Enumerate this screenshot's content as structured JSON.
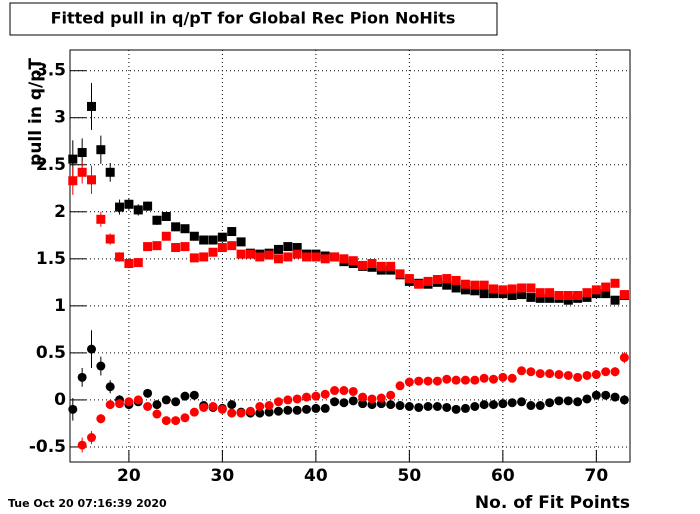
{
  "chart_data": {
    "type": "errorbar",
    "title": "Fitted pull in q/pT for Global Rec Pion NoHits",
    "y_label": "pull in q/pT",
    "x_label": "No. of Fit Points",
    "timestamp": "Tue Oct 20 07:16:39 2020",
    "x": [
      14,
      15,
      16,
      17,
      18,
      19,
      20,
      21,
      22,
      23,
      24,
      25,
      26,
      27,
      28,
      29,
      30,
      31,
      32,
      33,
      34,
      35,
      36,
      37,
      38,
      39,
      40,
      41,
      42,
      43,
      44,
      45,
      46,
      47,
      48,
      49,
      50,
      51,
      52,
      53,
      54,
      55,
      56,
      57,
      58,
      59,
      60,
      61,
      62,
      63,
      64,
      65,
      66,
      67,
      68,
      69,
      70,
      71,
      72,
      73
    ],
    "xlim": [
      13.7,
      73.6
    ],
    "ylim": [
      -0.66,
      3.72
    ],
    "xticks": [
      20,
      30,
      40,
      50,
      60,
      70
    ],
    "yticks": [
      -0.5,
      0,
      0.5,
      1,
      1.5,
      2,
      2.5,
      3,
      3.5
    ],
    "grid": true,
    "series": [
      {
        "color": "#000000",
        "marker": "square",
        "values": [
          2.56,
          2.63,
          3.12,
          2.66,
          2.42,
          2.05,
          2.08,
          2.02,
          2.06,
          1.91,
          1.95,
          1.84,
          1.82,
          1.74,
          1.7,
          1.7,
          1.73,
          1.79,
          1.68,
          1.56,
          1.55,
          1.56,
          1.6,
          1.63,
          1.62,
          1.55,
          1.55,
          1.53,
          1.52,
          1.47,
          1.45,
          1.42,
          1.41,
          1.38,
          1.38,
          1.33,
          1.26,
          1.24,
          1.23,
          1.25,
          1.22,
          1.19,
          1.17,
          1.16,
          1.13,
          1.13,
          1.13,
          1.11,
          1.12,
          1.09,
          1.08,
          1.08,
          1.08,
          1.06,
          1.08,
          1.09,
          1.13,
          1.13,
          1.06,
          1.11
        ],
        "errors": [
          0.2,
          0.15,
          0.25,
          0.15,
          0.1,
          0.08,
          0.06,
          0.06,
          0.05,
          0.05,
          0.04,
          0.04,
          0.04,
          0.04,
          0.03,
          0.03,
          0.03,
          0.03,
          0.03,
          0.03,
          0.03,
          0.03,
          0.03,
          0.03,
          0.03,
          0.03,
          0.03,
          0.03,
          0.03,
          0.03,
          0.03,
          0.03,
          0.03,
          0.03,
          0.03,
          0.03,
          0.03,
          0.03,
          0.03,
          0.03,
          0.03,
          0.03,
          0.03,
          0.03,
          0.03,
          0.03,
          0.03,
          0.03,
          0.03,
          0.03,
          0.03,
          0.03,
          0.03,
          0.03,
          0.03,
          0.03,
          0.03,
          0.03,
          0.03,
          0.04
        ]
      },
      {
        "color": "#ff0000",
        "marker": "square",
        "values": [
          2.33,
          2.42,
          2.34,
          1.92,
          1.71,
          1.52,
          1.45,
          1.46,
          1.63,
          1.64,
          1.74,
          1.62,
          1.63,
          1.51,
          1.52,
          1.57,
          1.62,
          1.64,
          1.55,
          1.55,
          1.52,
          1.54,
          1.5,
          1.52,
          1.55,
          1.52,
          1.52,
          1.5,
          1.52,
          1.5,
          1.48,
          1.43,
          1.45,
          1.42,
          1.42,
          1.34,
          1.29,
          1.23,
          1.26,
          1.28,
          1.29,
          1.27,
          1.23,
          1.22,
          1.22,
          1.18,
          1.17,
          1.18,
          1.19,
          1.19,
          1.14,
          1.14,
          1.11,
          1.11,
          1.11,
          1.14,
          1.17,
          1.2,
          1.24,
          1.12
        ],
        "errors": [
          0.15,
          0.12,
          0.15,
          0.08,
          0.06,
          0.05,
          0.05,
          0.04,
          0.04,
          0.04,
          0.03,
          0.03,
          0.03,
          0.03,
          0.03,
          0.03,
          0.03,
          0.03,
          0.03,
          0.03,
          0.03,
          0.03,
          0.03,
          0.03,
          0.03,
          0.03,
          0.03,
          0.03,
          0.03,
          0.03,
          0.03,
          0.03,
          0.03,
          0.03,
          0.03,
          0.03,
          0.03,
          0.03,
          0.03,
          0.03,
          0.03,
          0.03,
          0.03,
          0.03,
          0.03,
          0.03,
          0.03,
          0.03,
          0.03,
          0.03,
          0.03,
          0.03,
          0.03,
          0.03,
          0.03,
          0.03,
          0.03,
          0.03,
          0.04,
          0.04
        ]
      },
      {
        "color": "#000000",
        "marker": "circle",
        "values": [
          -0.1,
          0.24,
          0.54,
          0.36,
          0.14,
          0.0,
          -0.05,
          -0.02,
          0.07,
          -0.05,
          0.0,
          -0.02,
          0.04,
          0.05,
          -0.06,
          -0.08,
          -0.09,
          -0.05,
          -0.13,
          -0.14,
          -0.14,
          -0.13,
          -0.12,
          -0.11,
          -0.11,
          -0.1,
          -0.09,
          -0.09,
          -0.02,
          -0.03,
          -0.01,
          -0.04,
          -0.05,
          -0.04,
          -0.05,
          -0.06,
          -0.07,
          -0.08,
          -0.07,
          -0.07,
          -0.08,
          -0.1,
          -0.09,
          -0.07,
          -0.05,
          -0.05,
          -0.04,
          -0.03,
          -0.02,
          -0.06,
          -0.06,
          -0.03,
          -0.01,
          -0.01,
          -0.02,
          0.01,
          0.05,
          0.05,
          0.03,
          0.0
        ],
        "errors": [
          0.12,
          0.1,
          0.2,
          0.1,
          0.07,
          0.05,
          0.05,
          0.04,
          0.04,
          0.04,
          0.03,
          0.03,
          0.03,
          0.03,
          0.03,
          0.03,
          0.03,
          0.03,
          0.03,
          0.03,
          0.03,
          0.03,
          0.03,
          0.03,
          0.03,
          0.03,
          0.03,
          0.03,
          0.03,
          0.03,
          0.03,
          0.03,
          0.03,
          0.03,
          0.03,
          0.03,
          0.03,
          0.03,
          0.03,
          0.03,
          0.03,
          0.03,
          0.03,
          0.03,
          0.03,
          0.03,
          0.03,
          0.03,
          0.03,
          0.03,
          0.03,
          0.03,
          0.03,
          0.03,
          0.03,
          0.03,
          0.03,
          0.04,
          0.04,
          0.05
        ]
      },
      {
        "color": "#ff0000",
        "marker": "circle",
        "values": [
          null,
          -0.48,
          -0.4,
          -0.2,
          -0.05,
          -0.04,
          -0.02,
          0.0,
          -0.07,
          -0.15,
          -0.22,
          -0.22,
          -0.19,
          -0.13,
          -0.08,
          -0.07,
          -0.1,
          -0.14,
          -0.14,
          -0.12,
          -0.07,
          -0.06,
          -0.02,
          0.0,
          0.01,
          0.03,
          0.04,
          0.06,
          0.1,
          0.1,
          0.09,
          0.03,
          0.01,
          0.02,
          0.05,
          0.15,
          0.19,
          0.2,
          0.2,
          0.2,
          0.22,
          0.21,
          0.21,
          0.21,
          0.23,
          0.22,
          0.24,
          0.23,
          0.31,
          0.3,
          0.28,
          0.28,
          0.27,
          0.26,
          0.24,
          0.26,
          0.27,
          0.3,
          0.3,
          0.45
        ],
        "errors": [
          null,
          0.08,
          0.07,
          0.05,
          0.04,
          0.04,
          0.03,
          0.03,
          0.03,
          0.03,
          0.03,
          0.03,
          0.03,
          0.03,
          0.03,
          0.03,
          0.03,
          0.03,
          0.03,
          0.03,
          0.03,
          0.03,
          0.03,
          0.03,
          0.03,
          0.03,
          0.03,
          0.03,
          0.03,
          0.03,
          0.03,
          0.03,
          0.03,
          0.03,
          0.03,
          0.03,
          0.03,
          0.03,
          0.03,
          0.03,
          0.03,
          0.03,
          0.03,
          0.03,
          0.03,
          0.03,
          0.03,
          0.03,
          0.03,
          0.03,
          0.03,
          0.03,
          0.03,
          0.03,
          0.03,
          0.03,
          0.03,
          0.04,
          0.05,
          0.06
        ]
      }
    ]
  }
}
